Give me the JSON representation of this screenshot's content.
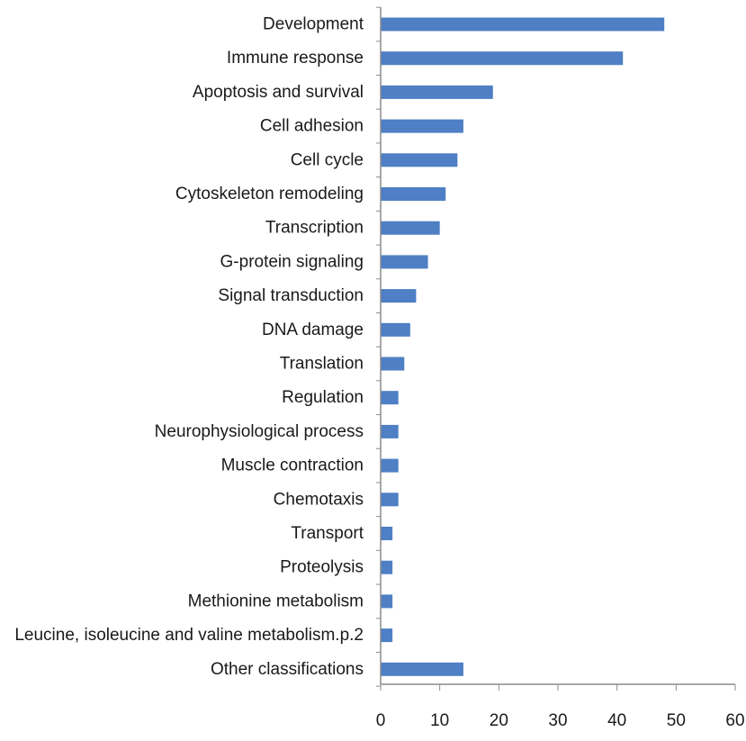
{
  "chart_data": {
    "type": "bar",
    "orientation": "horizontal",
    "title": "",
    "xlabel": "",
    "ylabel": "",
    "categories": [
      "Development",
      "Immune response",
      "Apoptosis and survival",
      "Cell adhesion",
      "Cell cycle",
      "Cytoskeleton remodeling",
      "Transcription",
      "G-protein signaling",
      "Signal transduction",
      "DNA damage",
      "Translation",
      "Regulation",
      "Neurophysiological process",
      "Muscle contraction",
      "Chemotaxis",
      "Transport",
      "Proteolysis",
      "Methionine metabolism",
      "Leucine, isoleucine and valine metabolism.p.2",
      "Other classifications"
    ],
    "values": [
      48,
      41,
      19,
      14,
      13,
      11,
      10,
      8,
      6,
      5,
      4,
      3,
      3,
      3,
      3,
      2,
      2,
      2,
      2,
      14
    ],
    "xlim": [
      0,
      60
    ],
    "xticks": [
      "0",
      "10",
      "20",
      "30",
      "40",
      "50",
      "60"
    ],
    "grid": false,
    "legend": "none",
    "bar_color": "#4f7fc4",
    "axis_color": "#8c8c8c"
  }
}
